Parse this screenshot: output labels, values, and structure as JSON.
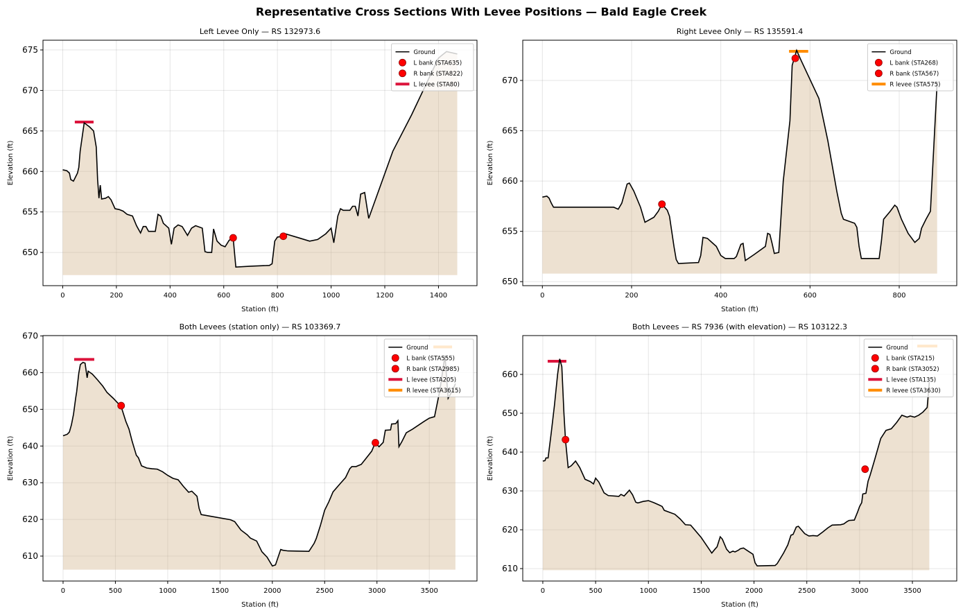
{
  "title": "Representative Cross Sections With Levee Positions — Bald Eagle Creek",
  "chart_data": [
    {
      "type": "line",
      "title": "Left Levee Only — RS 132973.6",
      "xlabel": "Station (ft)",
      "ylabel": "Elevation (ft)",
      "xlim": [
        -73.5,
        1543.5
      ],
      "ylim": [
        645.9,
        676.2
      ],
      "xticks": [
        0,
        200,
        400,
        600,
        800,
        1000,
        1200,
        1400
      ],
      "yticks": [
        650,
        655,
        660,
        665,
        670,
        675
      ],
      "grid": true,
      "legend": "upper right",
      "series": [
        {
          "name": "Ground",
          "color": "#000000",
          "fill_to": 647.2,
          "fill_color": "#d2b48c",
          "x": [
            0,
            15,
            25,
            30,
            40,
            55,
            60,
            65,
            80,
            100,
            115,
            125,
            130,
            135,
            140,
            145,
            160,
            170,
            180,
            195,
            210,
            225,
            240,
            260,
            275,
            290,
            300,
            310,
            320,
            345,
            355,
            365,
            375,
            395,
            405,
            415,
            430,
            445,
            465,
            480,
            495,
            520,
            530,
            540,
            555,
            562,
            575,
            590,
            605,
            620,
            635,
            645,
            700,
            770,
            780,
            790,
            800,
            822,
            830,
            880,
            920,
            950,
            980,
            1000,
            1010,
            1025,
            1035,
            1045,
            1070,
            1080,
            1090,
            1100,
            1110,
            1125,
            1140,
            1230,
            1300,
            1400,
            1430,
            1470
          ],
          "values": [
            660.2,
            660.1,
            659.8,
            659,
            658.8,
            659.8,
            660.5,
            662.5,
            666,
            665.5,
            665,
            663,
            659,
            656.7,
            658.3,
            656.6,
            656.7,
            656.9,
            656.5,
            655.4,
            655.3,
            655.1,
            654.7,
            654.5,
            653.3,
            652.4,
            653.2,
            653.2,
            652.6,
            652.6,
            654.7,
            654.5,
            653.6,
            653,
            651,
            653,
            653.4,
            653.2,
            652.1,
            653,
            653.3,
            653,
            650.1,
            650,
            650,
            652.9,
            651.4,
            650.9,
            650.7,
            651.5,
            651.8,
            648.2,
            648.3,
            648.4,
            648.6,
            651.4,
            651.9,
            652,
            652.3,
            651.8,
            651.4,
            651.6,
            652.3,
            653,
            651.2,
            654.5,
            655.4,
            655.2,
            655.2,
            655.7,
            655.7,
            654.5,
            657.2,
            657.4,
            654.2,
            662.5,
            667,
            674,
            674.8,
            674.5
          ]
        },
        {
          "name": "L bank (STA635)",
          "color": "#ff0000",
          "marker": true,
          "x": [
            635
          ],
          "values": [
            651.8
          ]
        },
        {
          "name": "R bank (STA822)",
          "color": "#ff0000",
          "marker": true,
          "x": [
            822
          ],
          "values": [
            652
          ]
        },
        {
          "name": "L levee (STA80)",
          "color": "#dc143c",
          "x": [
            45,
            115
          ],
          "values": [
            666.1,
            666.1
          ]
        }
      ]
    },
    {
      "type": "line",
      "title": "Right Levee Only — RS 135591.4",
      "xlabel": "Station (ft)",
      "ylabel": "Elevation (ft)",
      "xlim": [
        -44,
        929
      ],
      "ylim": [
        649.6,
        674
      ],
      "xticks": [
        0,
        200,
        400,
        600,
        800
      ],
      "yticks": [
        650,
        655,
        660,
        665,
        670
      ],
      "grid": true,
      "legend": "upper right",
      "series": [
        {
          "name": "Ground",
          "color": "#000000",
          "fill_to": 650.8,
          "fill_color": "#d2b48c",
          "x": [
            0,
            10,
            15,
            20,
            25,
            50,
            160,
            170,
            178,
            190,
            195,
            205,
            220,
            230,
            250,
            260,
            268,
            280,
            285,
            295,
            300,
            305,
            350,
            355,
            360,
            370,
            380,
            390,
            400,
            410,
            430,
            435,
            445,
            450,
            455,
            475,
            500,
            505,
            510,
            515,
            520,
            530,
            540,
            555,
            560,
            570,
            580,
            620,
            640,
            660,
            670,
            675,
            700,
            705,
            710,
            715,
            755,
            760,
            765,
            780,
            790,
            795,
            805,
            820,
            835,
            845,
            850,
            860,
            870,
            885
          ],
          "values": [
            658.4,
            658.5,
            658.3,
            657.8,
            657.4,
            657.4,
            657.4,
            657.2,
            657.8,
            659.7,
            659.8,
            659,
            657.4,
            655.9,
            656.4,
            657,
            657.7,
            657.1,
            656.5,
            653.5,
            652.2,
            651.8,
            651.9,
            652.6,
            654.4,
            654.3,
            653.9,
            653.5,
            652.6,
            652.3,
            652.3,
            652.5,
            653.7,
            653.8,
            652.1,
            652.7,
            653.5,
            654.8,
            654.7,
            653.8,
            652.8,
            652.9,
            660,
            666,
            671.5,
            673,
            672,
            668.2,
            664,
            659,
            656.8,
            656.2,
            655.8,
            655.4,
            653.5,
            652.3,
            652.3,
            654,
            656.2,
            657,
            657.6,
            657.4,
            656.2,
            654.8,
            653.9,
            654.3,
            655.3,
            656.2,
            657,
            669.8
          ]
        },
        {
          "name": "L bank (STA268)",
          "color": "#ff0000",
          "marker": true,
          "x": [
            268
          ],
          "values": [
            657.7
          ]
        },
        {
          "name": "R bank (STA567)",
          "color": "#ff0000",
          "marker": true,
          "x": [
            567
          ],
          "values": [
            672.2
          ]
        },
        {
          "name": "R levee (STA575)",
          "color": "#ff8c00",
          "x": [
            553,
            596
          ],
          "values": [
            672.9,
            672.9
          ]
        }
      ]
    },
    {
      "type": "line",
      "title": "Both Levees (station only) — RS 103369.7",
      "xlabel": "Station (ft)",
      "ylabel": "Elevation (ft)",
      "xlim": [
        -192,
        3956
      ],
      "ylim": [
        603.2,
        670.1
      ],
      "xticks": [
        0,
        500,
        1000,
        1500,
        2000,
        2500,
        3000,
        3500
      ],
      "yticks": [
        610,
        620,
        630,
        640,
        650,
        660,
        670
      ],
      "grid": true,
      "legend": "upper right",
      "series": [
        {
          "name": "Ground",
          "color": "#000000",
          "fill_to": 606.3,
          "fill_color": "#d2b48c",
          "x": [
            0,
            40,
            60,
            80,
            100,
            120,
            130,
            150,
            165,
            190,
            210,
            230,
            240,
            280,
            330,
            380,
            420,
            480,
            530,
            560,
            600,
            630,
            660,
            680,
            700,
            720,
            750,
            800,
            850,
            900,
            950,
            1000,
            1050,
            1100,
            1150,
            1200,
            1230,
            1280,
            1300,
            1320,
            1400,
            1600,
            1640,
            1700,
            1760,
            1790,
            1850,
            1900,
            1950,
            2000,
            2030,
            2080,
            2100,
            2150,
            2350,
            2400,
            2420,
            2460,
            2500,
            2540,
            2580,
            2650,
            2700,
            2740,
            2760,
            2800,
            2850,
            2900,
            2950,
            2985,
            3010,
            3020,
            3060,
            3080,
            3130,
            3140,
            3180,
            3200,
            3210,
            3240,
            3280,
            3340,
            3450,
            3500,
            3550,
            3600,
            3630,
            3650,
            3680,
            3720,
            3750
          ],
          "values": [
            642.8,
            643.2,
            643.8,
            645.8,
            648.7,
            653,
            654.8,
            659.8,
            662.2,
            662.8,
            662.6,
            658.6,
            660.4,
            659.6,
            658,
            656.3,
            654.6,
            653,
            651.5,
            650.3,
            646.7,
            644.6,
            641.3,
            639.4,
            637.5,
            636.8,
            634.6,
            634,
            633.8,
            633.7,
            633,
            632,
            631.2,
            630.8,
            629,
            627.4,
            627.7,
            626.3,
            623,
            621.3,
            620.9,
            619.9,
            619.4,
            617.1,
            615.8,
            614.9,
            614.1,
            611.2,
            609.7,
            607.3,
            607.6,
            611.8,
            611.6,
            611.4,
            611.3,
            613.5,
            614.8,
            618.4,
            622.5,
            624.8,
            627.5,
            629.8,
            631.4,
            633.8,
            634.4,
            634.4,
            635,
            636.8,
            638.6,
            641,
            640.1,
            639.8,
            641,
            644.3,
            644.4,
            646,
            646.1,
            646.9,
            639.8,
            641.3,
            643.6,
            644.6,
            646.7,
            647.6,
            648,
            655,
            660.8,
            664.6,
            653,
            655,
            657
          ]
        },
        {
          "name": "L bank (STA555)",
          "color": "#ff0000",
          "marker": true,
          "x": [
            555
          ],
          "values": [
            651
          ]
        },
        {
          "name": "R bank (STA2985)",
          "color": "#ff0000",
          "marker": true,
          "x": [
            2985
          ],
          "values": [
            640.9
          ]
        },
        {
          "name": "L levee (STA205)",
          "color": "#dc143c",
          "x": [
            106,
            298
          ],
          "values": [
            663.6,
            663.6
          ]
        },
        {
          "name": "R levee (STA3615)",
          "color": "#ff8c00",
          "x": [
            3539,
            3718
          ],
          "values": [
            667,
            667
          ]
        }
      ]
    },
    {
      "type": "line",
      "title": "Both Levees — RS 7936 (with elevation) — RS 103122.3",
      "xlabel": "Station (ft)",
      "ylabel": "Elevation (ft)",
      "xlim": [
        -190,
        3920
      ],
      "ylim": [
        606.8,
        670
      ],
      "xticks": [
        0,
        500,
        1000,
        1500,
        2000,
        2500,
        3000,
        3500
      ],
      "yticks": [
        610,
        620,
        630,
        640,
        650,
        660
      ],
      "grid": true,
      "legend": "upper right",
      "series": [
        {
          "name": "Ground",
          "color": "#000000",
          "fill_to": 609.6,
          "fill_color": "#d2b48c",
          "x": [
            0,
            20,
            30,
            50,
            80,
            110,
            140,
            160,
            180,
            200,
            215,
            240,
            270,
            310,
            350,
            400,
            450,
            480,
            500,
            530,
            580,
            620,
            720,
            740,
            770,
            820,
            850,
            880,
            900,
            950,
            1000,
            1050,
            1100,
            1130,
            1150,
            1200,
            1250,
            1300,
            1350,
            1400,
            1500,
            1550,
            1600,
            1630,
            1650,
            1680,
            1700,
            1740,
            1770,
            1800,
            1820,
            1850,
            1870,
            1900,
            1950,
            1990,
            2010,
            2030,
            2200,
            2220,
            2280,
            2320,
            2350,
            2370,
            2400,
            2420,
            2480,
            2520,
            2560,
            2600,
            2650,
            2700,
            2740,
            2820,
            2850,
            2880,
            2900,
            2950,
            2980,
            3000,
            3020,
            3030,
            3060,
            3080,
            3100,
            3140,
            3200,
            3250,
            3300,
            3350,
            3400,
            3450,
            3480,
            3520,
            3560,
            3600,
            3640,
            3660
          ],
          "values": [
            637.7,
            637.8,
            638.5,
            638.5,
            645,
            652,
            660,
            664,
            662,
            650,
            643,
            636,
            636.5,
            637.7,
            636,
            633,
            632.4,
            631.8,
            633.3,
            632.3,
            629.5,
            628.8,
            628.6,
            629.1,
            628.7,
            630.2,
            629,
            627.1,
            626.9,
            627.3,
            627.5,
            627,
            626.4,
            626,
            625,
            624.5,
            624,
            622.8,
            621.3,
            621.2,
            618,
            616,
            614,
            615,
            615.6,
            618.2,
            617.6,
            615,
            614.1,
            614.5,
            614.3,
            614.7,
            615.1,
            615.3,
            614.4,
            613.7,
            611.5,
            610.7,
            610.8,
            611.3,
            614,
            616.1,
            618.6,
            618.8,
            620.7,
            620.9,
            619,
            618.4,
            618.5,
            618.4,
            619.4,
            620.5,
            621.2,
            621.3,
            621.5,
            622.1,
            622.4,
            622.5,
            624.5,
            626,
            627,
            629.2,
            629.4,
            632.5,
            634.1,
            637.8,
            643.5,
            645.6,
            646,
            647.6,
            649.5,
            649,
            649.3,
            649,
            649.5,
            650.3,
            651.5,
            658
          ]
        },
        {
          "name": "L bank (STA215)",
          "color": "#ff0000",
          "marker": true,
          "x": [
            215
          ],
          "values": [
            643.2
          ]
        },
        {
          "name": "R bank (STA3052)",
          "color": "#ff0000",
          "marker": true,
          "x": [
            3052
          ],
          "values": [
            635.6
          ]
        },
        {
          "name": "L levee (STA135)",
          "color": "#dc143c",
          "x": [
            46,
            223
          ],
          "values": [
            663.4,
            663.4
          ]
        },
        {
          "name": "R levee (STA3630)",
          "color": "#ff8c00",
          "x": [
            3546,
            3736
          ],
          "values": [
            667.3,
            667.3
          ]
        }
      ]
    }
  ]
}
